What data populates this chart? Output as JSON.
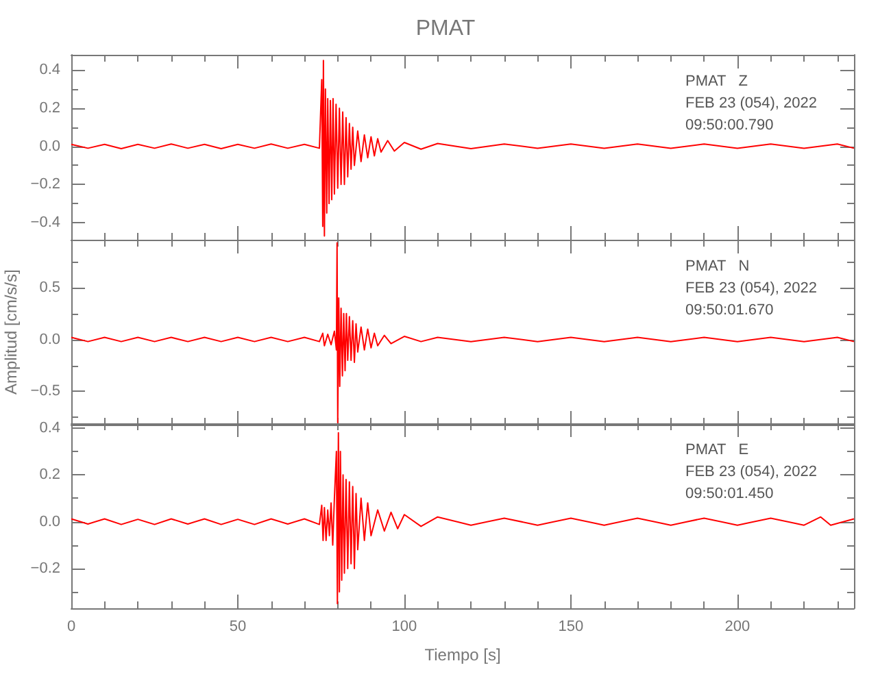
{
  "chart_data": [
    {
      "type": "line",
      "title": "PMAT",
      "annotations": [
        "PMAT   Z",
        "FEB 23 (054), 2022",
        "09:50:00.790"
      ],
      "marker": "none",
      "tick_labels": "y",
      "xlim": [
        0,
        235
      ],
      "xticks": [
        0,
        {
          "value": 10,
          "label": null
        },
        {
          "value": 20,
          "label": null
        },
        {
          "value": 30,
          "label": null
        },
        {
          "value": 40,
          "label": null
        },
        50,
        {
          "value": 60,
          "label": null
        },
        {
          "value": 70,
          "label": null
        },
        {
          "value": 80,
          "label": null
        },
        {
          "value": 90,
          "label": null
        },
        100,
        {
          "value": 110,
          "label": null
        },
        {
          "value": 120,
          "label": null
        },
        {
          "value": 130,
          "label": null
        },
        {
          "value": 140,
          "label": null
        },
        150,
        {
          "value": 160,
          "label": null
        },
        {
          "value": 170,
          "label": null
        },
        {
          "value": 180,
          "label": null
        },
        {
          "value": 190,
          "label": null
        },
        200,
        {
          "value": 210,
          "label": null
        },
        {
          "value": 220,
          "label": null
        },
        {
          "value": 230,
          "label": null
        }
      ],
      "ylim": [
        -0.49,
        0.48
      ],
      "yticks": [
        {
          "value": -0.4,
          "label": "−0.4"
        },
        {
          "value": -0.3,
          "label": null
        },
        {
          "value": -0.2,
          "label": "−0.2"
        },
        {
          "value": -0.1,
          "label": null
        },
        {
          "value": 0,
          "label": "0.0"
        },
        {
          "value": 0.1,
          "label": null
        },
        0.2,
        {
          "value": 0.3,
          "label": null
        },
        0.4
      ],
      "series": [
        {
          "color": "#ff0000",
          "x": [
            0,
            5,
            10,
            15,
            20,
            25,
            30,
            35,
            40,
            45,
            50,
            55,
            60,
            65,
            70,
            74.5,
            75.2,
            75.5,
            75.7,
            76,
            76.3,
            76.7,
            77,
            77.4,
            77.8,
            78.2,
            78.6,
            79,
            79.5,
            80,
            80.5,
            81,
            81.5,
            82,
            82.5,
            83,
            83.5,
            84,
            84.5,
            85,
            86,
            87,
            88,
            89,
            90,
            91,
            92,
            93,
            95,
            97,
            100,
            105,
            110,
            120,
            130,
            140,
            150,
            160,
            170,
            180,
            190,
            200,
            210,
            220,
            230,
            235
          ],
          "values": [
            0.01,
            -0.01,
            0.01,
            -0.012,
            0.01,
            -0.01,
            0.012,
            -0.01,
            0.01,
            -0.012,
            0.01,
            -0.01,
            0.012,
            -0.01,
            0.01,
            -0.01,
            0.35,
            -0.42,
            0.45,
            -0.47,
            0.3,
            -0.35,
            0.25,
            -0.3,
            0.24,
            -0.28,
            0.25,
            -0.25,
            0.22,
            -0.22,
            0.2,
            -0.2,
            0.18,
            -0.2,
            0.15,
            -0.16,
            0.12,
            -0.12,
            0.1,
            -0.1,
            0.08,
            -0.08,
            0.06,
            -0.06,
            0.05,
            -0.05,
            0.04,
            -0.03,
            0.03,
            -0.025,
            0.02,
            -0.015,
            0.015,
            -0.012,
            0.012,
            -0.01,
            0.012,
            -0.01,
            0.012,
            -0.01,
            0.012,
            -0.01,
            0.012,
            -0.01,
            0.012,
            -0.01
          ]
        }
      ]
    },
    {
      "type": "line",
      "ylabel": "Amplitud [cm/s/s]",
      "annotations": [
        "PMAT   N",
        "FEB 23 (054), 2022",
        "09:50:01.670"
      ],
      "marker": "none",
      "tick_labels": "y",
      "xlim": [
        0,
        235
      ],
      "xticks": [
        0,
        {
          "value": 10,
          "label": null
        },
        {
          "value": 20,
          "label": null
        },
        {
          "value": 30,
          "label": null
        },
        {
          "value": 40,
          "label": null
        },
        50,
        {
          "value": 60,
          "label": null
        },
        {
          "value": 70,
          "label": null
        },
        {
          "value": 80,
          "label": null
        },
        {
          "value": 90,
          "label": null
        },
        100,
        {
          "value": 110,
          "label": null
        },
        {
          "value": 120,
          "label": null
        },
        {
          "value": 130,
          "label": null
        },
        {
          "value": 140,
          "label": null
        },
        150,
        {
          "value": 160,
          "label": null
        },
        {
          "value": 170,
          "label": null
        },
        {
          "value": 180,
          "label": null
        },
        {
          "value": 190,
          "label": null
        },
        200,
        {
          "value": 210,
          "label": null
        },
        {
          "value": 220,
          "label": null
        },
        {
          "value": 230,
          "label": null
        }
      ],
      "ylim": [
        -0.82,
        0.96
      ],
      "yticks": [
        {
          "value": -0.75,
          "label": null
        },
        {
          "value": -0.5,
          "label": "−0.5"
        },
        {
          "value": -0.25,
          "label": null
        },
        {
          "value": 0,
          "label": "0.0"
        },
        {
          "value": 0.25,
          "label": null
        },
        0.5,
        {
          "value": 0.75,
          "label": null
        }
      ],
      "series": [
        {
          "color": "#ff0000",
          "x": [
            0,
            5,
            10,
            15,
            20,
            25,
            30,
            35,
            40,
            45,
            50,
            55,
            60,
            65,
            70,
            74.5,
            75.5,
            76,
            77,
            78,
            79,
            79.6,
            79.8,
            80,
            80.3,
            80.6,
            81,
            81.4,
            81.8,
            82.2,
            82.6,
            83,
            83.5,
            84,
            84.5,
            85,
            85.5,
            86,
            87,
            88,
            89,
            90,
            91,
            92,
            94,
            96,
            100,
            105,
            110,
            120,
            130,
            140,
            150,
            160,
            170,
            180,
            190,
            200,
            210,
            220,
            230,
            235
          ],
          "values": [
            0.02,
            -0.02,
            0.02,
            -0.02,
            0.02,
            -0.02,
            0.02,
            -0.02,
            0.02,
            -0.02,
            0.02,
            -0.02,
            0.02,
            -0.02,
            0.02,
            -0.02,
            0.06,
            -0.06,
            0.05,
            -0.05,
            0.08,
            -0.1,
            0.93,
            -0.8,
            0.4,
            -0.45,
            0.3,
            -0.35,
            0.25,
            -0.3,
            0.25,
            -0.2,
            0.22,
            -0.2,
            0.18,
            -0.22,
            0.15,
            -0.12,
            0.12,
            -0.1,
            0.1,
            -0.08,
            0.06,
            -0.06,
            0.04,
            -0.04,
            0.03,
            -0.02,
            0.02,
            -0.02,
            0.02,
            -0.02,
            0.02,
            -0.02,
            0.02,
            -0.02,
            0.02,
            -0.02,
            0.02,
            -0.02,
            0.02,
            -0.02
          ]
        }
      ]
    },
    {
      "type": "line",
      "xlabel": "Tiempo [s]",
      "annotations": [
        "PMAT   E",
        "FEB 23 (054), 2022",
        "09:50:01.450"
      ],
      "marker": "none",
      "xlim": [
        0,
        235
      ],
      "xticks": [
        0,
        {
          "value": 10,
          "label": null
        },
        {
          "value": 20,
          "label": null
        },
        {
          "value": 30,
          "label": null
        },
        {
          "value": 40,
          "label": null
        },
        50,
        {
          "value": 60,
          "label": null
        },
        {
          "value": 70,
          "label": null
        },
        {
          "value": 80,
          "label": null
        },
        {
          "value": 90,
          "label": null
        },
        100,
        {
          "value": 110,
          "label": null
        },
        {
          "value": 120,
          "label": null
        },
        {
          "value": 130,
          "label": null
        },
        {
          "value": 140,
          "label": null
        },
        150,
        {
          "value": 160,
          "label": null
        },
        {
          "value": 170,
          "label": null
        },
        {
          "value": 180,
          "label": null
        },
        {
          "value": 190,
          "label": null
        },
        200,
        {
          "value": 210,
          "label": null
        },
        {
          "value": 220,
          "label": null
        },
        {
          "value": 230,
          "label": null
        }
      ],
      "ylim": [
        -0.37,
        0.42
      ],
      "yticks": [
        {
          "value": -0.3,
          "label": null
        },
        {
          "value": -0.2,
          "label": "−0.2"
        },
        {
          "value": -0.1,
          "label": null
        },
        {
          "value": 0,
          "label": "0.0"
        },
        {
          "value": 0.1,
          "label": null
        },
        0.2,
        {
          "value": 0.3,
          "label": null
        },
        0.4
      ],
      "series": [
        {
          "color": "#ff0000",
          "x": [
            0,
            5,
            10,
            15,
            20,
            25,
            30,
            35,
            40,
            45,
            50,
            55,
            60,
            65,
            70,
            74.5,
            75.2,
            75.6,
            76,
            76.5,
            77,
            77.5,
            78,
            78.5,
            79,
            79.6,
            79.9,
            80.2,
            80.5,
            80.8,
            81.2,
            81.6,
            82,
            82.5,
            83,
            83.5,
            84,
            84.5,
            85,
            85.5,
            86,
            87,
            88,
            89,
            90,
            92,
            94,
            96,
            98,
            100,
            105,
            110,
            120,
            130,
            140,
            150,
            160,
            170,
            180,
            190,
            200,
            210,
            220,
            225,
            228,
            235
          ],
          "values": [
            0.012,
            -0.01,
            0.012,
            -0.012,
            0.01,
            -0.012,
            0.012,
            -0.01,
            0.012,
            -0.012,
            0.01,
            -0.012,
            0.012,
            -0.01,
            0.012,
            -0.012,
            0.07,
            -0.08,
            0.06,
            -0.08,
            0.05,
            -0.06,
            0.08,
            -0.1,
            0.1,
            0.3,
            -0.35,
            0.38,
            -0.3,
            0.3,
            -0.25,
            0.2,
            -0.22,
            0.18,
            -0.2,
            0.17,
            -0.18,
            0.15,
            -0.2,
            0.12,
            -0.12,
            0.1,
            -0.08,
            0.08,
            -0.06,
            0.05,
            -0.04,
            0.04,
            -0.03,
            0.03,
            -0.02,
            0.02,
            -0.015,
            0.015,
            -0.015,
            0.015,
            -0.015,
            0.015,
            -0.015,
            0.015,
            -0.015,
            0.015,
            -0.015,
            0.02,
            -0.015,
            0.012
          ]
        }
      ]
    }
  ]
}
